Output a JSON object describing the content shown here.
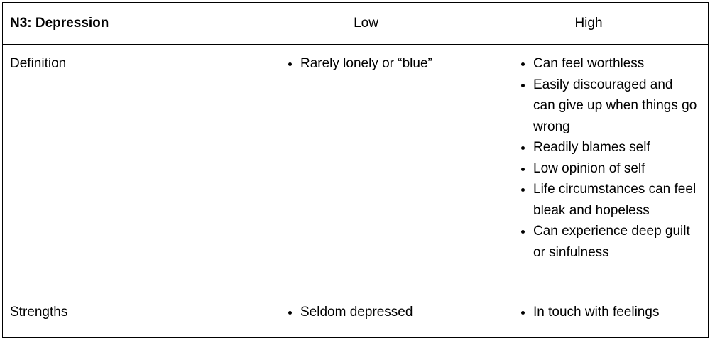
{
  "table": {
    "header": [
      "N3: Depression",
      "Low",
      "High"
    ],
    "rows": [
      {
        "label": "Definition",
        "low": [
          "Rarely lonely or “blue”"
        ],
        "high": [
          "Can feel worthless",
          "Easily discouraged and can give up when things go wrong",
          "Readily blames self",
          "Low opinion of self",
          "Life circumstances can feel bleak and hopeless",
          "Can experience deep guilt or sinfulness"
        ]
      },
      {
        "label": "Strengths",
        "low": [
          "Seldom depressed"
        ],
        "high": [
          "In touch with feelings"
        ]
      }
    ]
  }
}
